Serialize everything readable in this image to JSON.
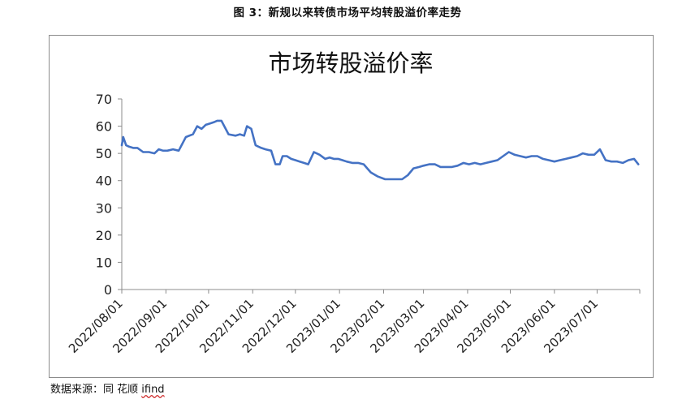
{
  "caption": "图 3：新规以来转债市场平均转股溢价率走势",
  "source": {
    "prefix": "数据来源：同 花顺 ",
    "brand": "ifind"
  },
  "chart_data": {
    "type": "line",
    "title": "市场转股溢价率",
    "xlabel": "",
    "ylabel": "",
    "ylim": [
      0,
      70
    ],
    "yticks": [
      0,
      10,
      20,
      30,
      40,
      50,
      60,
      70
    ],
    "x_ticks": [
      "2022/08/01",
      "2022/09/01",
      "2022/10/01",
      "2022/11/01",
      "2022/12/01",
      "2023/01/01",
      "2023/02/01",
      "2023/03/01",
      "2023/04/01",
      "2023/05/01",
      "2023/06/01",
      "2023/07/01"
    ],
    "x_range": [
      "2022/08/01",
      "2023/07/31"
    ],
    "grid": false,
    "legend": "none",
    "line_color": "#4472c4",
    "series": [
      {
        "x": [
          "2022/08/01",
          "2022/08/02",
          "2022/08/04",
          "2022/08/06",
          "2022/08/09",
          "2022/08/12",
          "2022/08/16",
          "2022/08/20",
          "2022/08/24",
          "2022/08/27",
          "2022/08/30",
          "2022/09/02",
          "2022/09/06",
          "2022/09/10",
          "2022/09/15",
          "2022/09/20",
          "2022/09/23",
          "2022/09/26",
          "2022/09/29",
          "2022/10/02",
          "2022/10/05",
          "2022/10/07",
          "2022/10/10",
          "2022/10/15",
          "2022/10/20",
          "2022/10/23",
          "2022/10/26",
          "2022/10/28",
          "2022/10/31",
          "2022/11/02",
          "2022/11/03",
          "2022/11/05",
          "2022/11/07",
          "2022/11/10",
          "2022/11/14",
          "2022/11/17",
          "2022/11/20",
          "2022/11/22",
          "2022/11/25",
          "2022/11/28",
          "2022/12/01",
          "2022/12/04",
          "2022/12/07",
          "2022/12/10",
          "2022/12/14",
          "2022/12/18",
          "2022/12/22",
          "2022/12/25",
          "2022/12/28",
          "2022/12/31",
          "2023/01/03",
          "2023/01/06",
          "2023/01/10",
          "2023/01/14",
          "2023/01/18",
          "2023/01/23",
          "2023/01/28",
          "2023/02/02",
          "2023/02/06",
          "2023/02/10",
          "2023/02/14",
          "2023/02/18",
          "2023/02/22",
          "2023/02/26",
          "2023/03/01",
          "2023/03/05",
          "2023/03/09",
          "2023/03/13",
          "2023/03/17",
          "2023/03/21",
          "2023/03/25",
          "2023/03/29",
          "2023/04/02",
          "2023/04/06",
          "2023/04/10",
          "2023/04/14",
          "2023/04/18",
          "2023/04/22",
          "2023/04/26",
          "2023/04/30",
          "2023/05/04",
          "2023/05/08",
          "2023/05/12",
          "2023/05/16",
          "2023/05/20",
          "2023/05/24",
          "2023/05/28",
          "2023/06/01",
          "2023/06/05",
          "2023/06/09",
          "2023/06/13",
          "2023/06/17",
          "2023/06/21",
          "2023/06/25",
          "2023/06/29",
          "2023/07/03",
          "2023/07/07",
          "2023/07/11",
          "2023/07/15",
          "2023/07/19",
          "2023/07/23",
          "2023/07/27",
          "2023/07/30"
        ],
        "y": [
          53,
          56,
          53,
          52.5,
          52,
          52,
          50.5,
          50.5,
          50,
          51.5,
          51,
          51,
          51.5,
          51,
          56,
          57,
          60,
          59,
          60.5,
          61,
          61.5,
          62,
          62,
          57,
          56.5,
          57,
          56.5,
          60,
          59,
          55,
          53,
          52.5,
          52,
          51.5,
          51,
          46,
          46,
          49,
          49,
          48,
          47.5,
          47,
          46.5,
          46,
          50.5,
          49.5,
          48,
          48.5,
          48,
          48,
          47.5,
          47,
          46.5,
          46.5,
          46,
          43,
          41.5,
          40.5,
          40.5,
          40.5,
          40.5,
          42,
          44.5,
          45,
          45.5,
          46,
          46,
          45,
          45,
          45,
          45.5,
          46.5,
          46,
          46.5,
          46,
          46.5,
          47,
          47.5,
          49,
          50.5,
          49.5,
          49,
          48.5,
          49,
          49,
          48,
          47.5,
          47,
          47.5,
          48,
          48.5,
          49,
          50,
          49.5,
          49.5,
          51.5,
          47.5,
          47,
          47,
          46.5,
          47.5,
          48,
          46
        ]
      }
    ]
  }
}
